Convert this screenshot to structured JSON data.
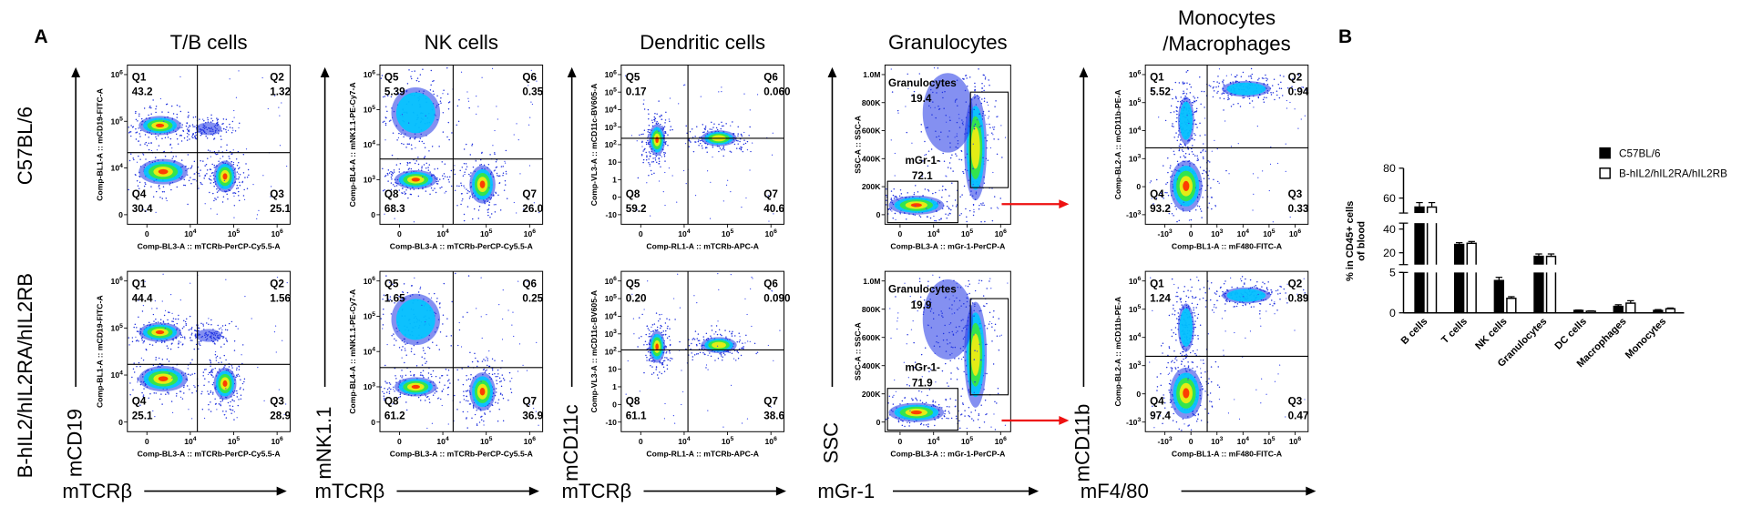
{
  "panel_a": {
    "label": "A",
    "row_labels": [
      "C57BL/6",
      "B-hIL2/hIL2RA/hIL2RB"
    ],
    "columns": [
      {
        "title": [
          "T/B cells"
        ],
        "y_marker": "mCD19",
        "x_marker": "mTCRβ",
        "x_axis": "Comp-BL3-A :: mTCRb-PerCP-Cy5.5-A",
        "y_axis": "Comp-BL1-A :: mCD19-FITC-A",
        "xticks": [
          "0",
          {
            "base": "10",
            "exp": "4"
          },
          {
            "base": "10",
            "exp": "5"
          },
          {
            "base": "10",
            "exp": "6"
          }
        ],
        "yticks": [
          {
            "base": "10",
            "exp": "6"
          },
          {
            "base": "10",
            "exp": "5"
          },
          {
            "base": "10",
            "exp": "4"
          },
          "0"
        ],
        "plots": [
          {
            "gates": [
              {
                "name": "Q1",
                "value": "43.2"
              },
              {
                "name": "Q2",
                "value": "1.32"
              },
              {
                "name": "Q3",
                "value": "25.1"
              },
              {
                "name": "Q4",
                "value": "30.4"
              }
            ]
          },
          {
            "gates": [
              {
                "name": "Q1",
                "value": "44.4"
              },
              {
                "name": "Q2",
                "value": "1.56"
              },
              {
                "name": "Q3",
                "value": "28.9"
              },
              {
                "name": "Q4",
                "value": "25.1"
              }
            ]
          }
        ]
      },
      {
        "title": [
          "NK cells"
        ],
        "y_marker": "mNK1.1",
        "x_marker": "mTCRβ",
        "x_axis": "Comp-BL3-A :: mTCRb-PerCP-Cy5.5-A",
        "y_axis": "Comp-BL4-A :: mNK1.1-PE-Cy7-A",
        "xticks": [
          "0",
          {
            "base": "10",
            "exp": "4"
          },
          {
            "base": "10",
            "exp": "5"
          },
          {
            "base": "10",
            "exp": "6"
          }
        ],
        "yticks": [
          {
            "base": "10",
            "exp": "6"
          },
          {
            "base": "10",
            "exp": "5"
          },
          {
            "base": "10",
            "exp": "4"
          },
          {
            "base": "10",
            "exp": "3"
          },
          "0"
        ],
        "plots": [
          {
            "gates": [
              {
                "name": "Q5",
                "value": "5.39"
              },
              {
                "name": "Q6",
                "value": "0.35"
              },
              {
                "name": "Q7",
                "value": "26.0"
              },
              {
                "name": "Q8",
                "value": "68.3"
              }
            ]
          },
          {
            "gates": [
              {
                "name": "Q5",
                "value": "1.65"
              },
              {
                "name": "Q6",
                "value": "0.25"
              },
              {
                "name": "Q7",
                "value": "36.9"
              },
              {
                "name": "Q8",
                "value": "61.2"
              }
            ]
          }
        ]
      },
      {
        "title": [
          "Dendritic cells"
        ],
        "y_marker": "mCD11c",
        "x_marker": "mTCRβ",
        "x_axis": "Comp-RL1-A :: mTCRb-APC-A",
        "y_axis": "Comp-VL3-A :: mCD11c-BV605-A",
        "xticks": [
          "0",
          {
            "base": "10",
            "exp": "4"
          },
          {
            "base": "10",
            "exp": "5"
          },
          {
            "base": "10",
            "exp": "6"
          }
        ],
        "yticks": [
          {
            "base": "10",
            "exp": "6"
          },
          {
            "base": "10",
            "exp": "5"
          },
          {
            "base": "10",
            "exp": "4"
          },
          {
            "base": "10",
            "exp": "3"
          },
          {
            "base": "10",
            "exp": "2"
          },
          "10",
          "1",
          "0",
          "-10"
        ],
        "plots": [
          {
            "gates": [
              {
                "name": "Q5",
                "value": "0.17"
              },
              {
                "name": "Q6",
                "value": "0.060"
              },
              {
                "name": "Q7",
                "value": "40.6"
              },
              {
                "name": "Q8",
                "value": "59.2"
              }
            ]
          },
          {
            "gates": [
              {
                "name": "Q5",
                "value": "0.20"
              },
              {
                "name": "Q6",
                "value": "0.090"
              },
              {
                "name": "Q7",
                "value": "38.6"
              },
              {
                "name": "Q8",
                "value": "61.1"
              }
            ]
          }
        ]
      },
      {
        "title": [
          "Granulocytes"
        ],
        "y_marker": "SSC",
        "x_marker": "mGr-1",
        "x_axis": "Comp-BL3-A :: mGr-1-PerCP-A",
        "y_axis": "SSC-A :: SSC-A",
        "xticks": [
          "0",
          {
            "base": "10",
            "exp": "4"
          },
          {
            "base": "10",
            "exp": "5"
          },
          {
            "base": "10",
            "exp": "6"
          }
        ],
        "yticks": [
          "1.0M",
          "800K",
          "600K",
          "400K",
          "200K",
          "0"
        ],
        "plots": [
          {
            "gates": [
              {
                "name": "Granulocytes",
                "value": "19.4"
              },
              {
                "name": "mGr-1-",
                "value": "72.1"
              }
            ]
          },
          {
            "gates": [
              {
                "name": "Granulocytes",
                "value": "19.9"
              },
              {
                "name": "mGr-1-",
                "value": "71.9"
              }
            ]
          }
        ]
      },
      {
        "title": [
          "Monocytes",
          "/Macrophages"
        ],
        "y_marker": "mCD11b",
        "x_marker": "mF4/80",
        "x_axis": "Comp-BL1-A :: mF480-FITC-A",
        "y_axis": "Comp-BL2-A :: mCD11b-PE-A",
        "xticks": [
          {
            "base": "-10",
            "exp": "3"
          },
          "0",
          {
            "base": "10",
            "exp": "3"
          },
          {
            "base": "10",
            "exp": "4"
          },
          {
            "base": "10",
            "exp": "5"
          },
          {
            "base": "10",
            "exp": "6"
          }
        ],
        "yticks": [
          {
            "base": "10",
            "exp": "6"
          },
          {
            "base": "10",
            "exp": "5"
          },
          {
            "base": "10",
            "exp": "4"
          },
          {
            "base": "10",
            "exp": "3"
          },
          "0",
          {
            "base": "-10",
            "exp": "3"
          }
        ],
        "plots": [
          {
            "gates": [
              {
                "name": "Q1",
                "value": "5.52"
              },
              {
                "name": "Q2",
                "value": "0.94"
              },
              {
                "name": "Q3",
                "value": "0.33"
              },
              {
                "name": "Q4",
                "value": "93.2"
              }
            ]
          },
          {
            "gates": [
              {
                "name": "Q1",
                "value": "1.24"
              },
              {
                "name": "Q2",
                "value": "0.89"
              },
              {
                "name": "Q3",
                "value": "0.47"
              },
              {
                "name": "Q4",
                "value": "97.4"
              }
            ]
          }
        ]
      }
    ]
  },
  "chart_data": {
    "type": "bar",
    "label": "B",
    "ylabel": [
      "% in CD45+ cells",
      "of blood"
    ],
    "categories": [
      "B cells",
      "T cells",
      "NK cells",
      "Granulocytes",
      "DC cells",
      "Macrophages",
      "Monocytes"
    ],
    "series": [
      {
        "name": "C57BL/6",
        "color": "#000000",
        "values": [
          54,
          27,
          4,
          17,
          0.3,
          0.8,
          0.3
        ],
        "errors": [
          3,
          1.5,
          0.4,
          2,
          0.05,
          0.2,
          0.1
        ]
      },
      {
        "name": "B-hIL2/hIL2RA/hIL2RB",
        "color": "#ffffff",
        "values": [
          54,
          28,
          1.8,
          17,
          0.2,
          1.2,
          0.5
        ],
        "errors": [
          3,
          1.5,
          0.2,
          2,
          0.05,
          0.3,
          0.1
        ]
      }
    ],
    "y_segments": [
      {
        "ylim": [
          0,
          5
        ],
        "yticks": [
          0,
          5
        ]
      },
      {
        "ylim": [
          10,
          45
        ],
        "yticks": [
          20,
          40
        ]
      },
      {
        "ylim": [
          50,
          80
        ],
        "yticks": [
          60,
          80
        ]
      }
    ],
    "legend": "upper right"
  }
}
